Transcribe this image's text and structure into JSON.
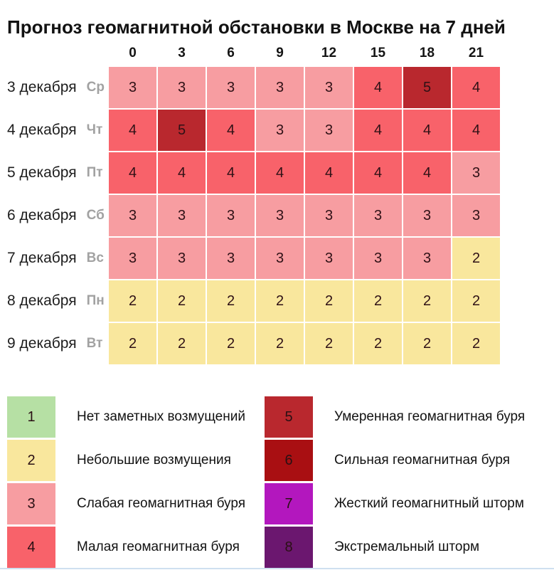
{
  "title": "Прогноз геомагнитной обстановки в Москве на 7 дней",
  "chart_data": {
    "type": "heatmap",
    "title": "Прогноз геомагнитной обстановки в Москве на 7 дней",
    "columns": [
      "0",
      "3",
      "6",
      "9",
      "12",
      "15",
      "18",
      "21"
    ],
    "rows": [
      {
        "date": "3 декабря",
        "weekday": "Ср",
        "values": [
          3,
          3,
          3,
          3,
          3,
          4,
          5,
          4
        ]
      },
      {
        "date": "4 декабря",
        "weekday": "Чт",
        "values": [
          4,
          5,
          4,
          3,
          3,
          4,
          4,
          4
        ]
      },
      {
        "date": "5 декабря",
        "weekday": "Пт",
        "values": [
          4,
          4,
          4,
          4,
          4,
          4,
          4,
          3
        ]
      },
      {
        "date": "6 декабря",
        "weekday": "Сб",
        "values": [
          3,
          3,
          3,
          3,
          3,
          3,
          3,
          3
        ]
      },
      {
        "date": "7 декабря",
        "weekday": "Вс",
        "values": [
          3,
          3,
          3,
          3,
          3,
          3,
          3,
          2
        ]
      },
      {
        "date": "8 декабря",
        "weekday": "Пн",
        "values": [
          2,
          2,
          2,
          2,
          2,
          2,
          2,
          2
        ]
      },
      {
        "date": "9 декабря",
        "weekday": "Вт",
        "values": [
          2,
          2,
          2,
          2,
          2,
          2,
          2,
          2
        ]
      }
    ],
    "colors": {
      "1": "#b6e0a4",
      "2": "#f9e79d",
      "3": "#f79da1",
      "4": "#f8626a",
      "5": "#b9282e",
      "6": "#a90f12",
      "7": "#b317be",
      "8": "#6b176f"
    }
  },
  "legend": {
    "items_left": [
      {
        "value": "1",
        "label": "Нет заметных возмущений"
      },
      {
        "value": "2",
        "label": "Небольшие возмущения"
      },
      {
        "value": "3",
        "label": "Слабая геомагнитная буря"
      },
      {
        "value": "4",
        "label": "Малая геомагнитная буря"
      }
    ],
    "items_right": [
      {
        "value": "5",
        "label": "Умеренная геомагнитная буря"
      },
      {
        "value": "6",
        "label": "Сильная геомагнитная буря"
      },
      {
        "value": "7",
        "label": "Жесткий геомагнитный шторм"
      },
      {
        "value": "8",
        "label": "Экстремальный шторм"
      }
    ]
  }
}
